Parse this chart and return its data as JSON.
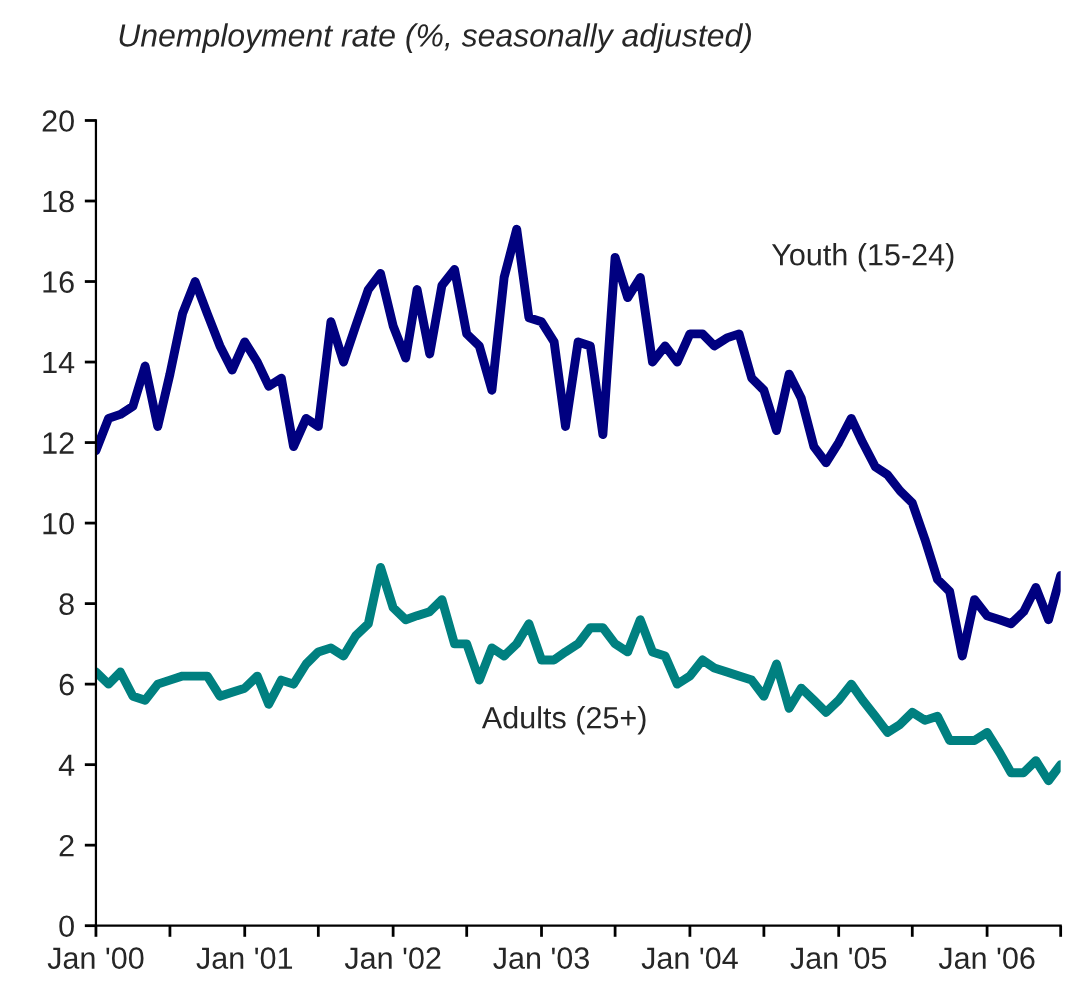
{
  "chart_data": {
    "type": "line",
    "title": "Unemployment rate (%, seasonally adjusted)",
    "x": [
      "2000-01",
      "2000-02",
      "2000-03",
      "2000-04",
      "2000-05",
      "2000-06",
      "2000-07",
      "2000-08",
      "2000-09",
      "2000-10",
      "2000-11",
      "2000-12",
      "2001-01",
      "2001-02",
      "2001-03",
      "2001-04",
      "2001-05",
      "2001-06",
      "2001-07",
      "2001-08",
      "2001-09",
      "2001-10",
      "2001-11",
      "2001-12",
      "2002-01",
      "2002-02",
      "2002-03",
      "2002-04",
      "2002-05",
      "2002-06",
      "2002-07",
      "2002-08",
      "2002-09",
      "2002-10",
      "2002-11",
      "2002-12",
      "2003-01",
      "2003-02",
      "2003-03",
      "2003-04",
      "2003-05",
      "2003-06",
      "2003-07",
      "2003-08",
      "2003-09",
      "2003-10",
      "2003-11",
      "2003-12",
      "2004-01",
      "2004-02",
      "2004-03",
      "2004-04",
      "2004-05",
      "2004-06",
      "2004-07",
      "2004-08",
      "2004-09",
      "2004-10",
      "2004-11",
      "2004-12",
      "2005-01",
      "2005-02",
      "2005-03",
      "2005-04",
      "2005-05",
      "2005-06",
      "2005-07",
      "2005-08",
      "2005-09",
      "2005-10",
      "2005-11",
      "2005-12",
      "2006-01",
      "2006-02",
      "2006-03",
      "2006-04",
      "2006-05",
      "2006-06",
      "2006-07"
    ],
    "series": [
      {
        "name": "Youth (15-24)",
        "color": "#000080",
        "values": [
          11.8,
          12.6,
          12.7,
          12.9,
          13.9,
          12.4,
          13.7,
          15.2,
          16.0,
          15.2,
          14.4,
          13.8,
          14.5,
          14.0,
          13.4,
          13.6,
          11.9,
          12.6,
          12.4,
          15.0,
          14.0,
          14.9,
          15.8,
          16.2,
          14.9,
          14.1,
          15.8,
          14.2,
          15.9,
          16.3,
          14.7,
          14.4,
          13.3,
          16.1,
          17.3,
          15.1,
          15.0,
          14.5,
          12.4,
          14.5,
          14.4,
          12.2,
          16.6,
          15.6,
          16.1,
          14.0,
          14.4,
          14.0,
          14.7,
          14.7,
          14.4,
          14.6,
          14.7,
          13.6,
          13.3,
          12.3,
          13.7,
          13.1,
          11.9,
          11.5,
          12.0,
          12.6,
          12.0,
          11.4,
          11.2,
          10.8,
          10.5,
          9.6,
          8.6,
          8.3,
          6.7,
          8.1,
          7.7,
          7.6,
          7.5,
          7.8,
          8.4,
          7.6,
          8.7
        ]
      },
      {
        "name": "Adults (25+)",
        "color": "#008080",
        "values": [
          6.3,
          6.0,
          6.3,
          5.7,
          5.6,
          6.0,
          6.1,
          6.2,
          6.2,
          6.2,
          5.7,
          5.8,
          5.9,
          6.2,
          5.5,
          6.1,
          6.0,
          6.5,
          6.8,
          6.9,
          6.7,
          7.2,
          7.5,
          8.9,
          7.9,
          7.6,
          7.7,
          7.8,
          8.1,
          7.0,
          7.0,
          6.1,
          6.9,
          6.7,
          7.0,
          7.5,
          6.6,
          6.6,
          6.8,
          7.0,
          7.4,
          7.4,
          7.0,
          6.8,
          7.6,
          6.8,
          6.7,
          6.0,
          6.2,
          6.6,
          6.4,
          6.3,
          6.2,
          6.1,
          5.7,
          6.5,
          5.4,
          5.9,
          5.6,
          5.3,
          5.6,
          6.0,
          5.6,
          5.2,
          4.8,
          5.0,
          5.3,
          5.1,
          5.2,
          4.6,
          4.6,
          4.6,
          4.8,
          4.3,
          3.8,
          3.8,
          4.1,
          3.6,
          4.0
        ]
      }
    ],
    "xlim": [
      "2000-01",
      "2006-07"
    ],
    "xticks": [
      {
        "value": "2000-01",
        "label": "Jan '00"
      },
      {
        "value": "2000-07",
        "label": null
      },
      {
        "value": "2001-01",
        "label": "Jan '01"
      },
      {
        "value": "2001-07",
        "label": null
      },
      {
        "value": "2002-01",
        "label": "Jan '02"
      },
      {
        "value": "2002-07",
        "label": null
      },
      {
        "value": "2003-01",
        "label": "Jan '03"
      },
      {
        "value": "2003-07",
        "label": null
      },
      {
        "value": "2004-01",
        "label": "Jan '04"
      },
      {
        "value": "2004-07",
        "label": null
      },
      {
        "value": "2005-01",
        "label": "Jan '05"
      },
      {
        "value": "2005-07",
        "label": null
      },
      {
        "value": "2006-01",
        "label": "Jan '06"
      },
      {
        "value": "2006-07",
        "label": null
      }
    ],
    "ylim": [
      0,
      20
    ],
    "yticks": [
      0,
      2,
      4,
      6,
      8,
      10,
      12,
      14,
      16,
      18,
      20
    ],
    "grid": false,
    "legend": false,
    "marker": "none",
    "line_style": "solid"
  }
}
